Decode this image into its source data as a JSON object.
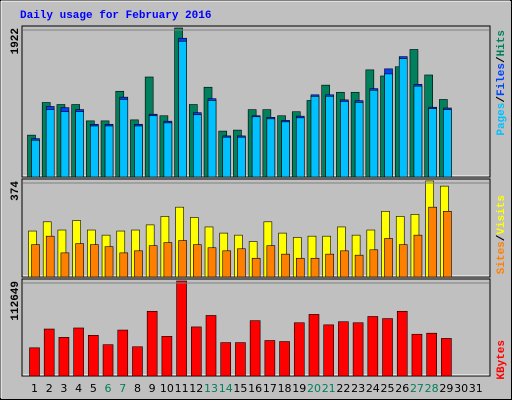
{
  "title": "Daily usage for February 2016",
  "legend_separator": "/",
  "chart_data": [
    {
      "type": "bar",
      "categories": [
        "1",
        "2",
        "3",
        "4",
        "5",
        "6",
        "7",
        "8",
        "9",
        "10",
        "11",
        "12",
        "13",
        "14",
        "15",
        "16",
        "17",
        "18",
        "19",
        "20",
        "21",
        "22",
        "23",
        "24",
        "25",
        "26",
        "27",
        "28",
        "29",
        "30",
        "31"
      ],
      "category_colors": [
        "#000000",
        "#000000",
        "#000000",
        "#000000",
        "#000000",
        "#00805C",
        "#00805C",
        "#000000",
        "#000000",
        "#000000",
        "#000000",
        "#000000",
        "#00805C",
        "#00805C",
        "#000000",
        "#000000",
        "#000000",
        "#000000",
        "#000000",
        "#00805C",
        "#00805C",
        "#000000",
        "#000000",
        "#000000",
        "#000000",
        "#000000",
        "#00805C",
        "#00805C",
        "#000000",
        "#000000",
        "#000000"
      ],
      "ylim": [
        0,
        1922
      ],
      "yticks": [
        1922
      ],
      "series": [
        {
          "name": "Hits",
          "color": "#00805C",
          "values": [
            540,
            961,
            935,
            935,
            724,
            724,
            1106,
            737,
            1290,
            790,
            1922,
            935,
            1158,
            592,
            605,
            869,
            869,
            790,
            842,
            987,
            1185,
            1093,
            1093,
            1382,
            1303,
            1422,
            1645,
            1316,
            1000,
            null,
            null
          ]
        },
        {
          "name": "Files",
          "color": "#0040FF",
          "values": [
            495,
            910,
            895,
            870,
            680,
            680,
            1030,
            680,
            810,
            720,
            1790,
            830,
            1010,
            530,
            530,
            790,
            770,
            730,
            785,
            1060,
            1060,
            995,
            985,
            1140,
            1395,
            1553,
            1195,
            900,
            890,
            null,
            null
          ]
        },
        {
          "name": "Pages",
          "color": "#00C0FF",
          "values": [
            474,
            869,
            842,
            842,
            658,
            658,
            1000,
            658,
            790,
            698,
            1751,
            803,
            987,
            513,
            513,
            777,
            750,
            711,
            763,
            1040,
            1040,
            974,
            961,
            1119,
            1330,
            1527,
            1172,
            882,
            869,
            null,
            null
          ]
        }
      ]
    },
    {
      "type": "bar",
      "ylim": [
        0,
        374
      ],
      "yticks": [
        374
      ],
      "series": [
        {
          "name": "Visits",
          "color": "#FFFF00",
          "values": [
            179,
            215,
            183,
            220,
            183,
            163,
            179,
            183,
            203,
            236,
            272,
            232,
            195,
            171,
            163,
            138,
            215,
            171,
            154,
            159,
            159,
            195,
            163,
            183,
            256,
            236,
            244,
            374,
            354,
            null,
            null
          ]
        },
        {
          "name": "Sites",
          "color": "#FF8000",
          "values": [
            126,
            159,
            94,
            130,
            126,
            118,
            94,
            102,
            122,
            134,
            142,
            126,
            114,
            102,
            110,
            73,
            122,
            89,
            73,
            73,
            89,
            102,
            85,
            106,
            150,
            126,
            163,
            272,
            256,
            null,
            null
          ]
        }
      ]
    },
    {
      "type": "bar",
      "ylim": [
        0,
        112649
      ],
      "yticks": [
        112649
      ],
      "series": [
        {
          "name": "KBytes",
          "color": "#FF0000",
          "values": [
            33423,
            55706,
            45803,
            56943,
            48278,
            37137,
            54468,
            34661,
            76749,
            47040,
            112649,
            58181,
            71798,
            39613,
            39613,
            65608,
            42088,
            40851,
            63133,
            73036,
            60657,
            64371,
            63133,
            70560,
            68084,
            76749,
            49516,
            50754,
            44565,
            null,
            null
          ]
        }
      ]
    }
  ]
}
